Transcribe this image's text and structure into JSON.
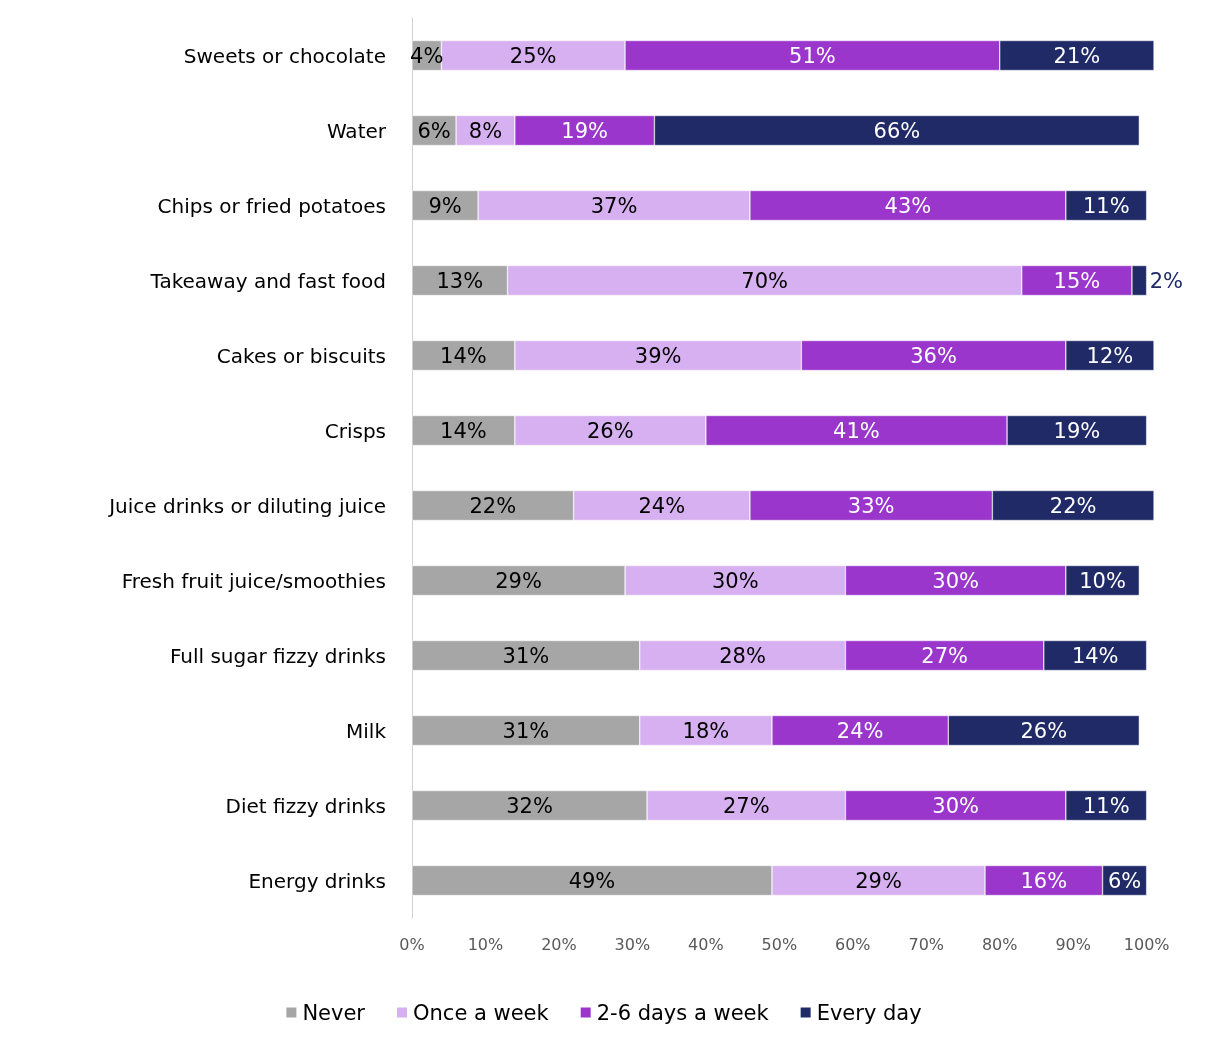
{
  "chart_data": {
    "type": "bar",
    "orientation": "horizontal",
    "stacked": true,
    "grid": false,
    "legend": "bottom",
    "categories": [
      "Sweets or chocolate",
      "Water",
      "Chips or fried potatoes",
      "Takeaway and fast food",
      "Cakes or biscuits",
      "Crisps",
      "Juice drinks or diluting juice",
      "Fresh fruit juice/smoothies",
      "Full sugar fizzy drinks",
      "Milk",
      "Diet fizzy drinks",
      "Energy drinks"
    ],
    "series": [
      {
        "name": "Never",
        "color": "#a6a6a6",
        "values": [
          4,
          6,
          9,
          13,
          14,
          14,
          22,
          29,
          31,
          31,
          32,
          49
        ],
        "value_labels": [
          "4%",
          "6%",
          "9%",
          "13%",
          "14%",
          "14%",
          "22%",
          "29%",
          "31%",
          "31%",
          "32%",
          "49%"
        ]
      },
      {
        "name": "Once a week",
        "color": "#d6b0f0",
        "values": [
          25,
          8,
          37,
          70,
          39,
          26,
          24,
          30,
          28,
          18,
          27,
          29
        ],
        "value_labels": [
          "25%",
          "8%",
          "37%",
          "70%",
          "39%",
          "26%",
          "24%",
          "30%",
          "28%",
          "18%",
          "27%",
          "29%"
        ]
      },
      {
        "name": "2-6 days a week",
        "color": "#9a36cc",
        "values": [
          51,
          19,
          43,
          15,
          36,
          41,
          33,
          30,
          27,
          24,
          30,
          16
        ],
        "value_labels": [
          "51%",
          "19%",
          "43%",
          "15%",
          "36%",
          "41%",
          "33%",
          "30%",
          "27%",
          "24%",
          "30%",
          "16%"
        ]
      },
      {
        "name": "Every day",
        "color": "#1f2a66",
        "values": [
          21,
          66,
          11,
          2,
          12,
          19,
          22,
          10,
          14,
          26,
          11,
          6
        ],
        "value_labels": [
          "21%",
          "66%",
          "11%",
          "2%",
          "12%",
          "19%",
          "22%",
          "10%",
          "14%",
          "26%",
          "11%",
          "6%"
        ]
      }
    ],
    "xlim": [
      0,
      101
    ],
    "xticks": [
      {
        "value": 0,
        "label": "0%"
      },
      {
        "value": 10,
        "label": "10%"
      },
      {
        "value": 20,
        "label": "20%"
      },
      {
        "value": 30,
        "label": "30%"
      },
      {
        "value": 40,
        "label": "40%"
      },
      {
        "value": 50,
        "label": "50%"
      },
      {
        "value": 60,
        "label": "60%"
      },
      {
        "value": 70,
        "label": "70%"
      },
      {
        "value": 80,
        "label": "80%"
      },
      {
        "value": 90,
        "label": "90%"
      },
      {
        "value": 100,
        "label": "100%"
      }
    ]
  }
}
